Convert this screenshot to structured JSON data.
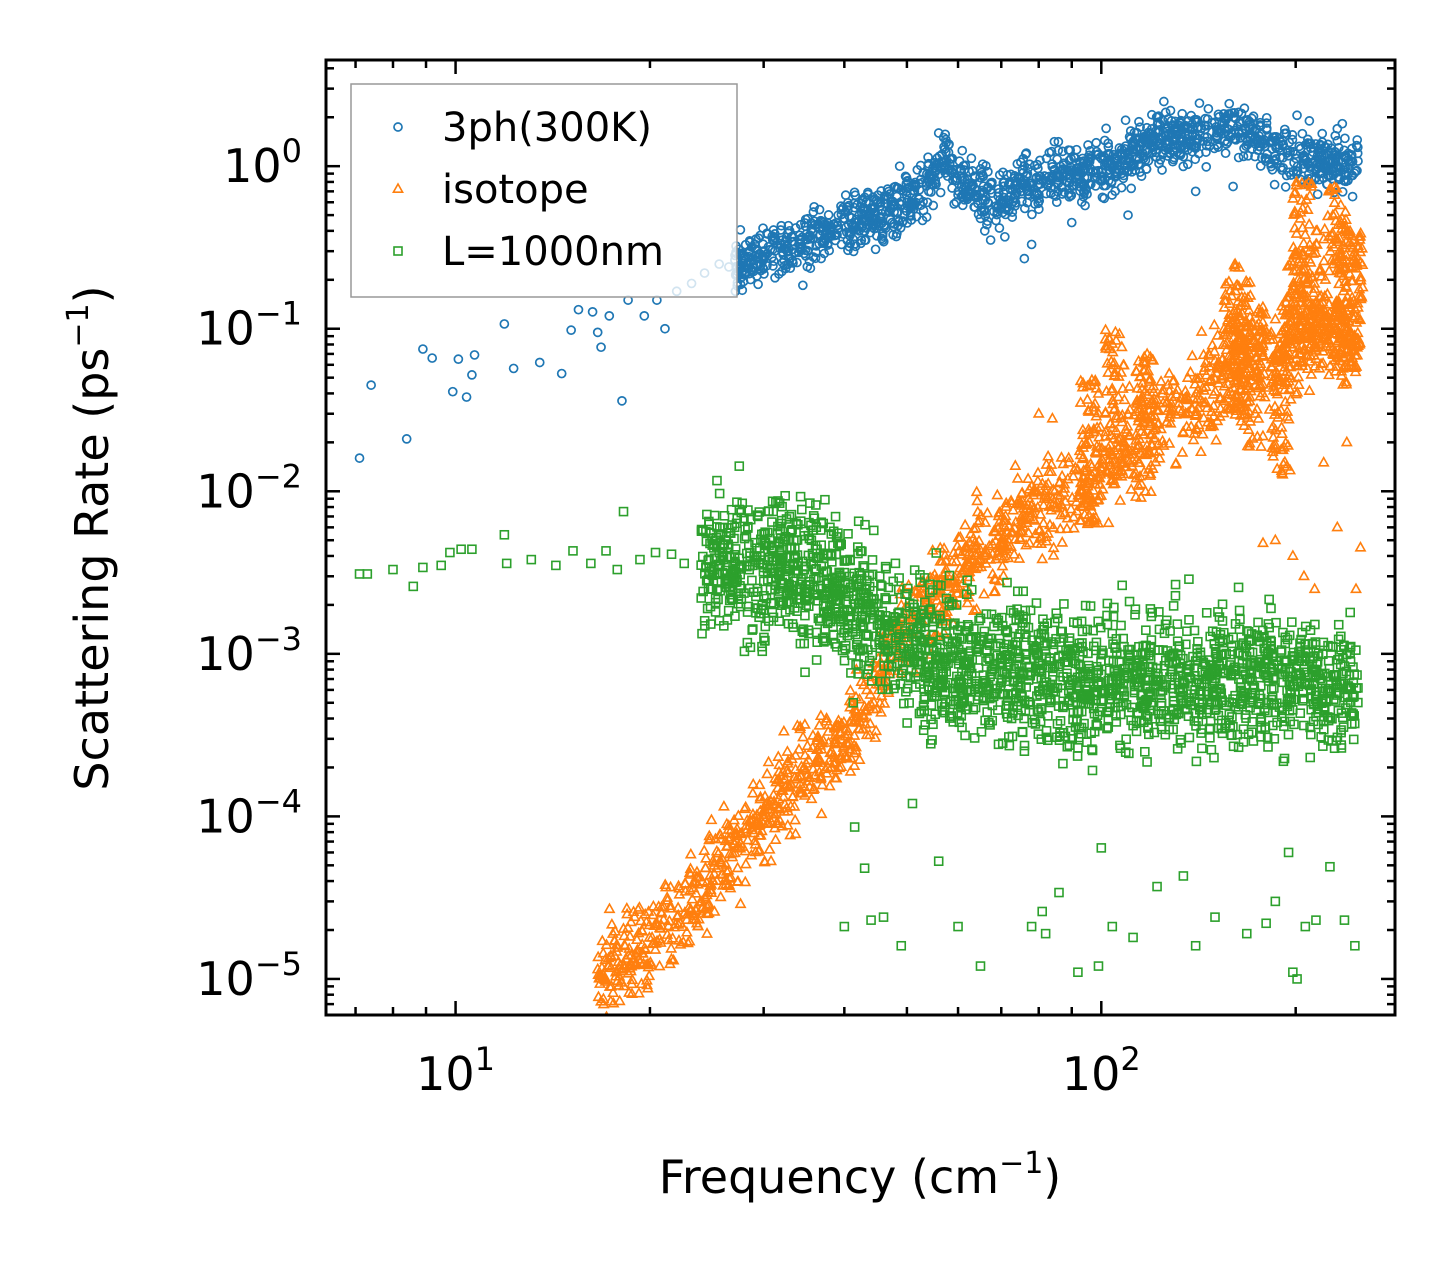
{
  "chart_data": {
    "type": "scatter",
    "xscale": "log",
    "yscale": "log",
    "xlim": [
      6.3,
      285
    ],
    "ylim": [
      6e-06,
      4.5
    ],
    "xlabel": {
      "text": "Frequency (cm",
      "sup": "−1",
      "close": ")"
    },
    "ylabel": {
      "text": "Scattering Rate (ps",
      "sup": "−1",
      "close": ")"
    },
    "x_ticks": [
      {
        "value": 10,
        "base": "10",
        "exp": "1"
      },
      {
        "value": 100,
        "base": "10",
        "exp": "2"
      }
    ],
    "y_ticks": [
      {
        "value": 1,
        "base": "10",
        "exp": "0"
      },
      {
        "value": 0.1,
        "base": "10",
        "exp": "−1"
      },
      {
        "value": 0.01,
        "base": "10",
        "exp": "−2"
      },
      {
        "value": 0.001,
        "base": "10",
        "exp": "−3"
      },
      {
        "value": 0.0001,
        "base": "10",
        "exp": "−4"
      },
      {
        "value": 1e-05,
        "base": "10",
        "exp": "−5"
      }
    ],
    "legend_position": "upper-left",
    "series": [
      {
        "name": "3ph(300K)",
        "marker": "circle",
        "color": "#1f77b4",
        "points": [
          [
            7.1,
            0.016
          ],
          [
            7.4,
            0.045
          ],
          [
            8.4,
            0.021
          ],
          [
            8.9,
            0.075
          ],
          [
            9.2,
            0.066
          ],
          [
            9.9,
            0.041
          ],
          [
            10.1,
            0.065
          ],
          [
            10.4,
            0.038
          ],
          [
            10.6,
            0.052
          ],
          [
            10.7,
            0.069
          ],
          [
            11.9,
            0.107
          ],
          [
            12.3,
            0.057
          ],
          [
            13.5,
            0.062
          ],
          [
            14.6,
            0.053
          ],
          [
            15.1,
            0.098
          ],
          [
            15.5,
            0.131
          ],
          [
            16.3,
            0.127
          ],
          [
            16.6,
            0.095
          ],
          [
            16.8,
            0.077
          ],
          [
            17.3,
            0.12
          ],
          [
            18.1,
            0.036
          ],
          [
            18.5,
            0.15
          ],
          [
            19.6,
            0.12
          ],
          [
            20.5,
            0.15
          ],
          [
            21.1,
            0.1
          ],
          [
            22.0,
            0.17
          ],
          [
            23.2,
            0.19
          ],
          [
            24.3,
            0.22
          ],
          [
            25.6,
            0.25
          ],
          [
            26.5,
            0.24
          ],
          [
            27.6,
            0.29
          ],
          [
            29.1,
            0.31
          ],
          [
            30.4,
            0.29
          ],
          [
            32.8,
            0.28
          ],
          [
            34.5,
            0.185
          ],
          [
            36.4,
            0.44
          ],
          [
            39.6,
            0.33
          ],
          [
            42.5,
            0.35
          ]
        ],
        "segments": [
          [
            [
              27,
              0.25
            ],
            [
              32,
              0.3
            ],
            [
              40,
              0.45
            ],
            [
              48,
              0.55
            ],
            [
              54,
              0.75
            ],
            [
              57,
              1.1
            ],
            [
              59,
              0.85
            ],
            [
              64,
              0.7
            ],
            [
              72,
              0.6
            ],
            [
              75,
              0.9
            ],
            [
              78,
              0.75
            ],
            [
              85,
              0.85
            ],
            [
              95,
              0.9
            ],
            [
              105,
              1.05
            ],
            [
              120,
              1.45
            ],
            [
              140,
              1.55
            ],
            [
              160,
              1.8
            ],
            [
              180,
              1.35
            ],
            [
              200,
              1.15
            ],
            [
              230,
              1.0
            ],
            [
              250,
              1.1
            ]
          ]
        ],
        "spread_decades": 0.17,
        "density": 1500,
        "outliers_high": [
          [
            57,
            1.5
          ],
          [
            58,
            1.35
          ],
          [
            125,
            2.5
          ],
          [
            128,
            2.2
          ],
          [
            210,
            1.9
          ],
          [
            232,
            1.7
          ],
          [
            56,
            1.6
          ]
        ],
        "outliers_low": [
          [
            76,
            0.27
          ],
          [
            78,
            0.33
          ],
          [
            66,
            0.4
          ],
          [
            90,
            0.45
          ],
          [
            110,
            0.5
          ],
          [
            160,
            0.75
          ],
          [
            245,
            0.65
          ],
          [
            140,
            0.7
          ]
        ]
      },
      {
        "name": "isotope",
        "marker": "triangle",
        "color": "#ff7f0e",
        "segments": [
          [
            [
              16.6,
              1.1e-05
            ],
            [
              19,
              1.4e-05
            ],
            [
              22,
              2.5e-05
            ],
            [
              26,
              5e-05
            ],
            [
              30,
              0.0001
            ],
            [
              34,
              0.00018
            ],
            [
              40,
              0.0003
            ],
            [
              45,
              0.0006
            ],
            [
              48,
              0.0012
            ],
            [
              52,
              0.0018
            ],
            [
              57,
              0.0025
            ],
            [
              62,
              0.0035
            ],
            [
              70,
              0.0055
            ],
            [
              80,
              0.008
            ],
            [
              95,
              0.012
            ],
            [
              110,
              0.02
            ],
            [
              125,
              0.03
            ],
            [
              140,
              0.035
            ],
            [
              150,
              0.045
            ],
            [
              165,
              0.07
            ],
            [
              185,
              0.07
            ],
            [
              210,
              0.11
            ],
            [
              230,
              0.09
            ],
            [
              250,
              0.08
            ]
          ]
        ],
        "spread_decades": 0.28,
        "density": 1700,
        "spikes": [
          [
            96,
            0.05
          ],
          [
            105,
            0.1
          ],
          [
            117,
            0.07
          ],
          [
            160,
            0.25
          ],
          [
            165,
            0.2
          ],
          [
            172,
            0.14
          ],
          [
            190,
            0.1
          ],
          [
            200,
            0.3
          ],
          [
            205,
            0.8
          ],
          [
            215,
            0.45
          ],
          [
            232,
            0.75
          ],
          [
            238,
            0.5
          ],
          [
            246,
            0.4
          ]
        ],
        "outliers_low": [
          [
            186,
            0.005
          ],
          [
            198,
            0.004
          ],
          [
            206,
            0.003
          ],
          [
            214,
            0.0025
          ],
          [
            232,
            0.006
          ],
          [
            252,
            0.0045
          ],
          [
            248,
            0.0025
          ],
          [
            221,
            0.015
          ],
          [
            240,
            0.02
          ],
          [
            84,
            0.028
          ],
          [
            80,
            0.03
          ],
          [
            178,
            0.0048
          ]
        ]
      },
      {
        "name": "L=1000nm",
        "marker": "square",
        "color": "#2ca02c",
        "points": [
          [
            7.1,
            0.0031
          ],
          [
            7.3,
            0.0031
          ],
          [
            8.0,
            0.0033
          ],
          [
            8.6,
            0.0026
          ],
          [
            8.9,
            0.0034
          ],
          [
            9.5,
            0.0035
          ],
          [
            9.8,
            0.0042
          ],
          [
            10.2,
            0.0044
          ],
          [
            10.6,
            0.0044
          ],
          [
            11.9,
            0.0054
          ],
          [
            12.0,
            0.0036
          ],
          [
            13.1,
            0.0038
          ],
          [
            14.3,
            0.0035
          ],
          [
            15.2,
            0.0043
          ],
          [
            16.2,
            0.0036
          ],
          [
            17.1,
            0.0043
          ],
          [
            17.8,
            0.0033
          ],
          [
            18.2,
            0.0075
          ],
          [
            19.3,
            0.0038
          ],
          [
            20.4,
            0.0042
          ],
          [
            21.6,
            0.0041
          ],
          [
            22.6,
            0.0036
          ],
          [
            24.5,
            0.0072
          ],
          [
            26.0,
            0.0038
          ],
          [
            27.3,
            0.0068
          ],
          [
            28.8,
            0.0014
          ],
          [
            30.1,
            0.0012
          ],
          [
            32.0,
            0.0066
          ],
          [
            35.2,
            0.0014
          ],
          [
            38.0,
            0.006
          ],
          [
            41.3,
            0.0005
          ]
        ],
        "segments": [
          [
            [
              24,
              0.0036
            ],
            [
              32,
              0.0033
            ],
            [
              38,
              0.0026
            ],
            [
              44,
              0.0018
            ],
            [
              50,
              0.0011
            ],
            [
              60,
              0.0009
            ],
            [
              75,
              0.0008
            ],
            [
              90,
              0.0007
            ],
            [
              110,
              0.0007
            ],
            [
              140,
              0.00065
            ],
            [
              170,
              0.0007
            ],
            [
              200,
              0.0007
            ],
            [
              230,
              0.0006
            ],
            [
              250,
              0.0006
            ]
          ]
        ],
        "spread_decades": 0.42,
        "density": 2300,
        "outliers_low": [
          [
            40,
            2.1e-05
          ],
          [
            41.5,
            8.6e-05
          ],
          [
            43,
            4.8e-05
          ],
          [
            44,
            2.3e-05
          ],
          [
            46,
            2.4e-05
          ],
          [
            49,
            1.6e-05
          ],
          [
            51,
            0.00012
          ],
          [
            56,
            5.3e-05
          ],
          [
            60,
            2.1e-05
          ],
          [
            65,
            1.2e-05
          ],
          [
            78,
            2.1e-05
          ],
          [
            81,
            2.6e-05
          ],
          [
            82,
            1.9e-05
          ],
          [
            86,
            3.4e-05
          ],
          [
            92,
            1.1e-05
          ],
          [
            99,
            1.2e-05
          ],
          [
            104,
            2.1e-05
          ],
          [
            112,
            1.8e-05
          ],
          [
            122,
            3.7e-05
          ],
          [
            140,
            1.6e-05
          ],
          [
            150,
            2.4e-05
          ],
          [
            168,
            1.9e-05
          ],
          [
            180,
            2.2e-05
          ],
          [
            198,
            1.1e-05
          ],
          [
            201,
            1e-05
          ],
          [
            207,
            2.1e-05
          ],
          [
            215,
            2.3e-05
          ],
          [
            238,
            2.3e-05
          ],
          [
            247,
            1.6e-05
          ],
          [
            226,
            4.9e-05
          ],
          [
            195,
            6e-05
          ],
          [
            186,
            3e-05
          ],
          [
            100,
            6.4e-05
          ],
          [
            134,
            4.3e-05
          ]
        ]
      }
    ]
  }
}
